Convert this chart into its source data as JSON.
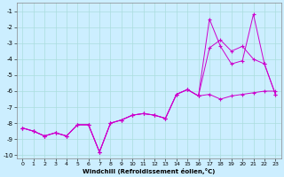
{
  "xlabel": "Windchill (Refroidissement éolien,°C)",
  "xlim": [
    -0.5,
    23.5
  ],
  "ylim": [
    -10.2,
    -0.5
  ],
  "yticks": [
    -1,
    -2,
    -3,
    -4,
    -5,
    -6,
    -7,
    -8,
    -9,
    -10
  ],
  "xticks": [
    0,
    1,
    2,
    3,
    4,
    5,
    6,
    7,
    8,
    9,
    10,
    11,
    12,
    13,
    14,
    15,
    16,
    17,
    18,
    19,
    20,
    21,
    22,
    23
  ],
  "background_color": "#cceeff",
  "grid_color": "#aadddd",
  "line_color": "#cc00cc",
  "figsize": [
    3.2,
    2.0
  ],
  "dpi": 100,
  "series": [
    {
      "x": [
        0,
        1,
        2,
        3,
        4,
        5,
        6,
        7,
        8,
        9,
        10,
        11,
        12,
        13,
        14,
        15,
        16,
        17,
        18,
        19,
        20,
        21,
        22,
        23
      ],
      "y": [
        -8.3,
        -8.5,
        -8.8,
        -8.6,
        -8.8,
        -8.1,
        -8.1,
        -9.8,
        -8.0,
        -7.8,
        -7.5,
        -7.4,
        -7.5,
        -7.7,
        -6.2,
        -5.9,
        -6.3,
        -6.2,
        -6.5,
        -6.3,
        -6.2,
        -6.1,
        -6.0,
        -6.0
      ]
    },
    {
      "x": [
        0,
        1,
        2,
        3,
        4,
        5,
        6,
        7,
        8,
        9,
        10,
        11,
        12,
        13,
        14,
        15,
        16,
        17,
        18,
        19,
        20,
        21,
        22,
        23
      ],
      "y": [
        -8.3,
        -8.5,
        -8.8,
        -8.6,
        -8.8,
        -8.1,
        -8.1,
        -9.8,
        -8.0,
        -7.8,
        -7.5,
        -7.4,
        -7.5,
        -7.7,
        -6.2,
        -5.9,
        -6.3,
        -3.3,
        -2.8,
        -3.5,
        -3.2,
        -4.0,
        -4.3,
        -6.2
      ]
    },
    {
      "x": [
        0,
        1,
        2,
        3,
        4,
        5,
        6,
        7,
        8,
        9,
        10,
        11,
        12,
        13,
        14,
        15,
        16,
        17,
        18,
        19,
        20,
        21,
        22,
        23
      ],
      "y": [
        -8.3,
        -8.5,
        -8.8,
        -8.6,
        -8.8,
        -8.1,
        -8.1,
        -9.8,
        -8.0,
        -7.8,
        -7.5,
        -7.4,
        -7.5,
        -7.7,
        -6.2,
        -5.9,
        -6.3,
        -1.5,
        -3.2,
        -4.3,
        -4.1,
        -1.2,
        -4.3,
        -6.2
      ]
    }
  ]
}
